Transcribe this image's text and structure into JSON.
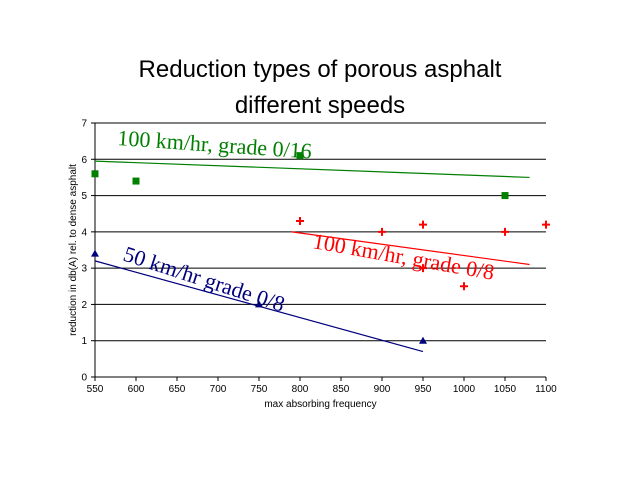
{
  "chart_data": {
    "type": "scatter",
    "title_line1": "Reduction types of porous asphalt",
    "title_line2": "different speeds",
    "xlabel": "max absorbing frequency",
    "ylabel": "reduction in db(A) rel. to dense asphalt",
    "xlim": [
      550,
      1100
    ],
    "ylim": [
      0,
      7
    ],
    "xticks": [
      "550",
      "600",
      "650",
      "700",
      "750",
      "800",
      "850",
      "900",
      "950",
      "1000",
      "1050",
      "1100"
    ],
    "yticks": [
      "0",
      "1",
      "2",
      "3",
      "4",
      "5",
      "6",
      "7"
    ],
    "grid": "horizontal",
    "series": [
      {
        "name": "100 km/hr, grade 0/16",
        "color": "#007f00",
        "marker": "square",
        "points": [
          [
            550,
            5.6
          ],
          [
            600,
            5.4
          ],
          [
            800,
            6.1
          ],
          [
            1050,
            5.0
          ]
        ],
        "trendline": [
          [
            550,
            5.95
          ],
          [
            1080,
            5.5
          ]
        ]
      },
      {
        "name": "100 km/hr, grade 0/8",
        "color": "#ff0000",
        "marker": "plus",
        "points": [
          [
            800,
            4.3
          ],
          [
            900,
            4.0
          ],
          [
            950,
            4.2
          ],
          [
            950,
            3.0
          ],
          [
            1000,
            2.5
          ],
          [
            1050,
            4.0
          ],
          [
            1100,
            4.2
          ]
        ],
        "trendline": [
          [
            790,
            4.0
          ],
          [
            1080,
            3.1
          ]
        ]
      },
      {
        "name": "50 km/hr grade 0/8",
        "color": "#00007f",
        "marker": "triangle",
        "points": [
          [
            550,
            3.4
          ],
          [
            750,
            2.0
          ],
          [
            950,
            1.0
          ]
        ],
        "trendline": [
          [
            550,
            3.2
          ],
          [
            950,
            0.7
          ]
        ]
      }
    ],
    "annotations": [
      {
        "text": "100 km/hr, grade 0/16",
        "series": 0
      },
      {
        "text": "100 km/hr, grade 0/8",
        "series": 1
      },
      {
        "text": "50 km/hr grade 0/8",
        "series": 2
      }
    ]
  }
}
